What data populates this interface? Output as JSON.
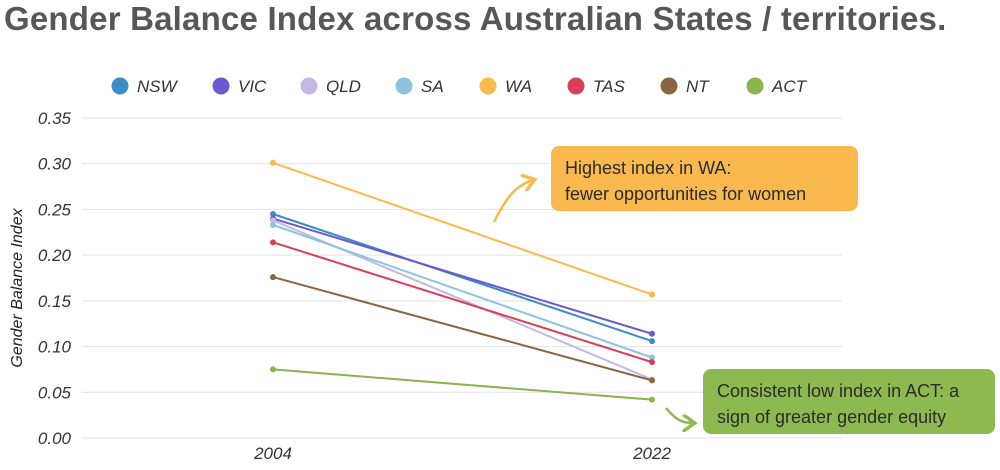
{
  "title": "Gender Balance Index across Australian States / territories.",
  "chart_data": {
    "type": "line",
    "title": "Gender Balance Index across Australian States / territories.",
    "xlabel": "",
    "ylabel": "Gender Balance Index",
    "categories": [
      "2004",
      "2022"
    ],
    "ylim": [
      0,
      0.35
    ],
    "yticks": [
      "0.00",
      "0.05",
      "0.10",
      "0.15",
      "0.20",
      "0.25",
      "0.30",
      "0.35"
    ],
    "grid": true,
    "legend_position": "top",
    "series": [
      {
        "name": "NSW",
        "color": "#3c8dc5",
        "values": [
          0.245,
          0.106
        ]
      },
      {
        "name": "VIC",
        "color": "#6a5acd",
        "values": [
          0.24,
          0.114
        ]
      },
      {
        "name": "QLD",
        "color": "#c4b8e6",
        "values": [
          0.238,
          0.064
        ]
      },
      {
        "name": "SA",
        "color": "#8ac4df",
        "values": [
          0.233,
          0.088
        ]
      },
      {
        "name": "WA",
        "color": "#f9bb4b",
        "values": [
          0.301,
          0.157
        ]
      },
      {
        "name": "TAS",
        "color": "#d94058",
        "values": [
          0.214,
          0.083
        ]
      },
      {
        "name": "NT",
        "color": "#8b6542",
        "values": [
          0.176,
          0.063
        ]
      },
      {
        "name": "ACT",
        "color": "#8ab44e",
        "values": [
          0.075,
          0.042
        ]
      }
    ],
    "annotations": [
      {
        "lines": [
          "Highest index in WA:",
          "fewer opportunities for women"
        ],
        "color": "#f9b94f"
      },
      {
        "lines": [
          "Consistent low index in ACT: a",
          "sign of greater gender equity"
        ],
        "color": "#8cba50"
      }
    ]
  }
}
